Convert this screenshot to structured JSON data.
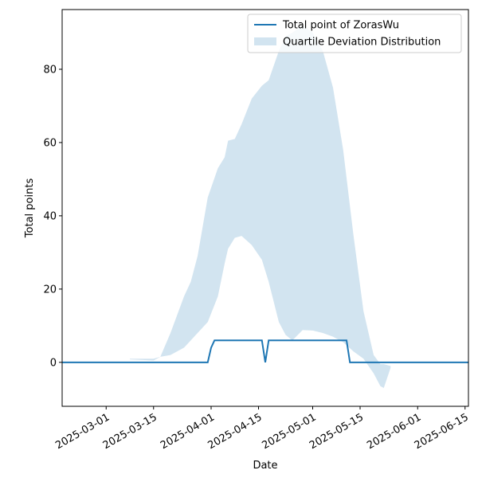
{
  "chart_data": {
    "type": "line",
    "xlabel": "Date",
    "ylabel": "Total points",
    "xlim": [
      "2025-02-16",
      "2025-06-16"
    ],
    "ylim": [
      -12,
      96.3
    ],
    "xticks": [
      "2025-03-01",
      "2025-03-15",
      "2025-04-01",
      "2025-04-15",
      "2025-05-01",
      "2025-05-15",
      "2025-06-01",
      "2025-06-15"
    ],
    "yticks": [
      0,
      20,
      40,
      60,
      80
    ],
    "legend": "upper right",
    "series": [
      {
        "name": "Total point of ZorasWu",
        "color": "#1f77b4",
        "kind": "line",
        "x": [
          "2025-02-16",
          "2025-03-31",
          "2025-04-01",
          "2025-04-02",
          "2025-04-16",
          "2025-04-17",
          "2025-04-18",
          "2025-05-11",
          "2025-05-12",
          "2025-06-16"
        ],
        "values": [
          0,
          0,
          4,
          6,
          6,
          0,
          6,
          6,
          0,
          0
        ]
      },
      {
        "name": "Quartile Deviation Distribution",
        "color": "#1f77b4",
        "alpha": 0.2,
        "kind": "band",
        "x": [
          "2025-03-08",
          "2025-03-15",
          "2025-03-17",
          "2025-03-20",
          "2025-03-24",
          "2025-03-26",
          "2025-03-28",
          "2025-03-31",
          "2025-04-03",
          "2025-04-05",
          "2025-04-06",
          "2025-04-08",
          "2025-04-10",
          "2025-04-13",
          "2025-04-16",
          "2025-04-18",
          "2025-04-21",
          "2025-04-23",
          "2025-04-25",
          "2025-04-28",
          "2025-05-01",
          "2025-05-04",
          "2025-05-07",
          "2025-05-10",
          "2025-05-13",
          "2025-05-16",
          "2025-05-19",
          "2025-05-21",
          "2025-05-22",
          "2025-05-24"
        ],
        "upper": [
          1,
          1,
          1.5,
          8,
          18,
          22,
          29,
          45,
          53,
          56,
          60.5,
          61,
          65,
          72,
          75.5,
          77,
          85,
          89,
          90,
          92,
          90,
          85,
          75,
          58,
          35,
          14,
          2,
          -0.5,
          -0.5,
          -1
        ],
        "lower": [
          0.8,
          0.5,
          1.5,
          2,
          4,
          6,
          8,
          11,
          18,
          27,
          31,
          34,
          34.5,
          32,
          28,
          22,
          11,
          7.5,
          6,
          8.8,
          8.7,
          8,
          7,
          5.5,
          3,
          1,
          -3,
          -6.5,
          -7,
          -1.5
        ]
      }
    ]
  }
}
